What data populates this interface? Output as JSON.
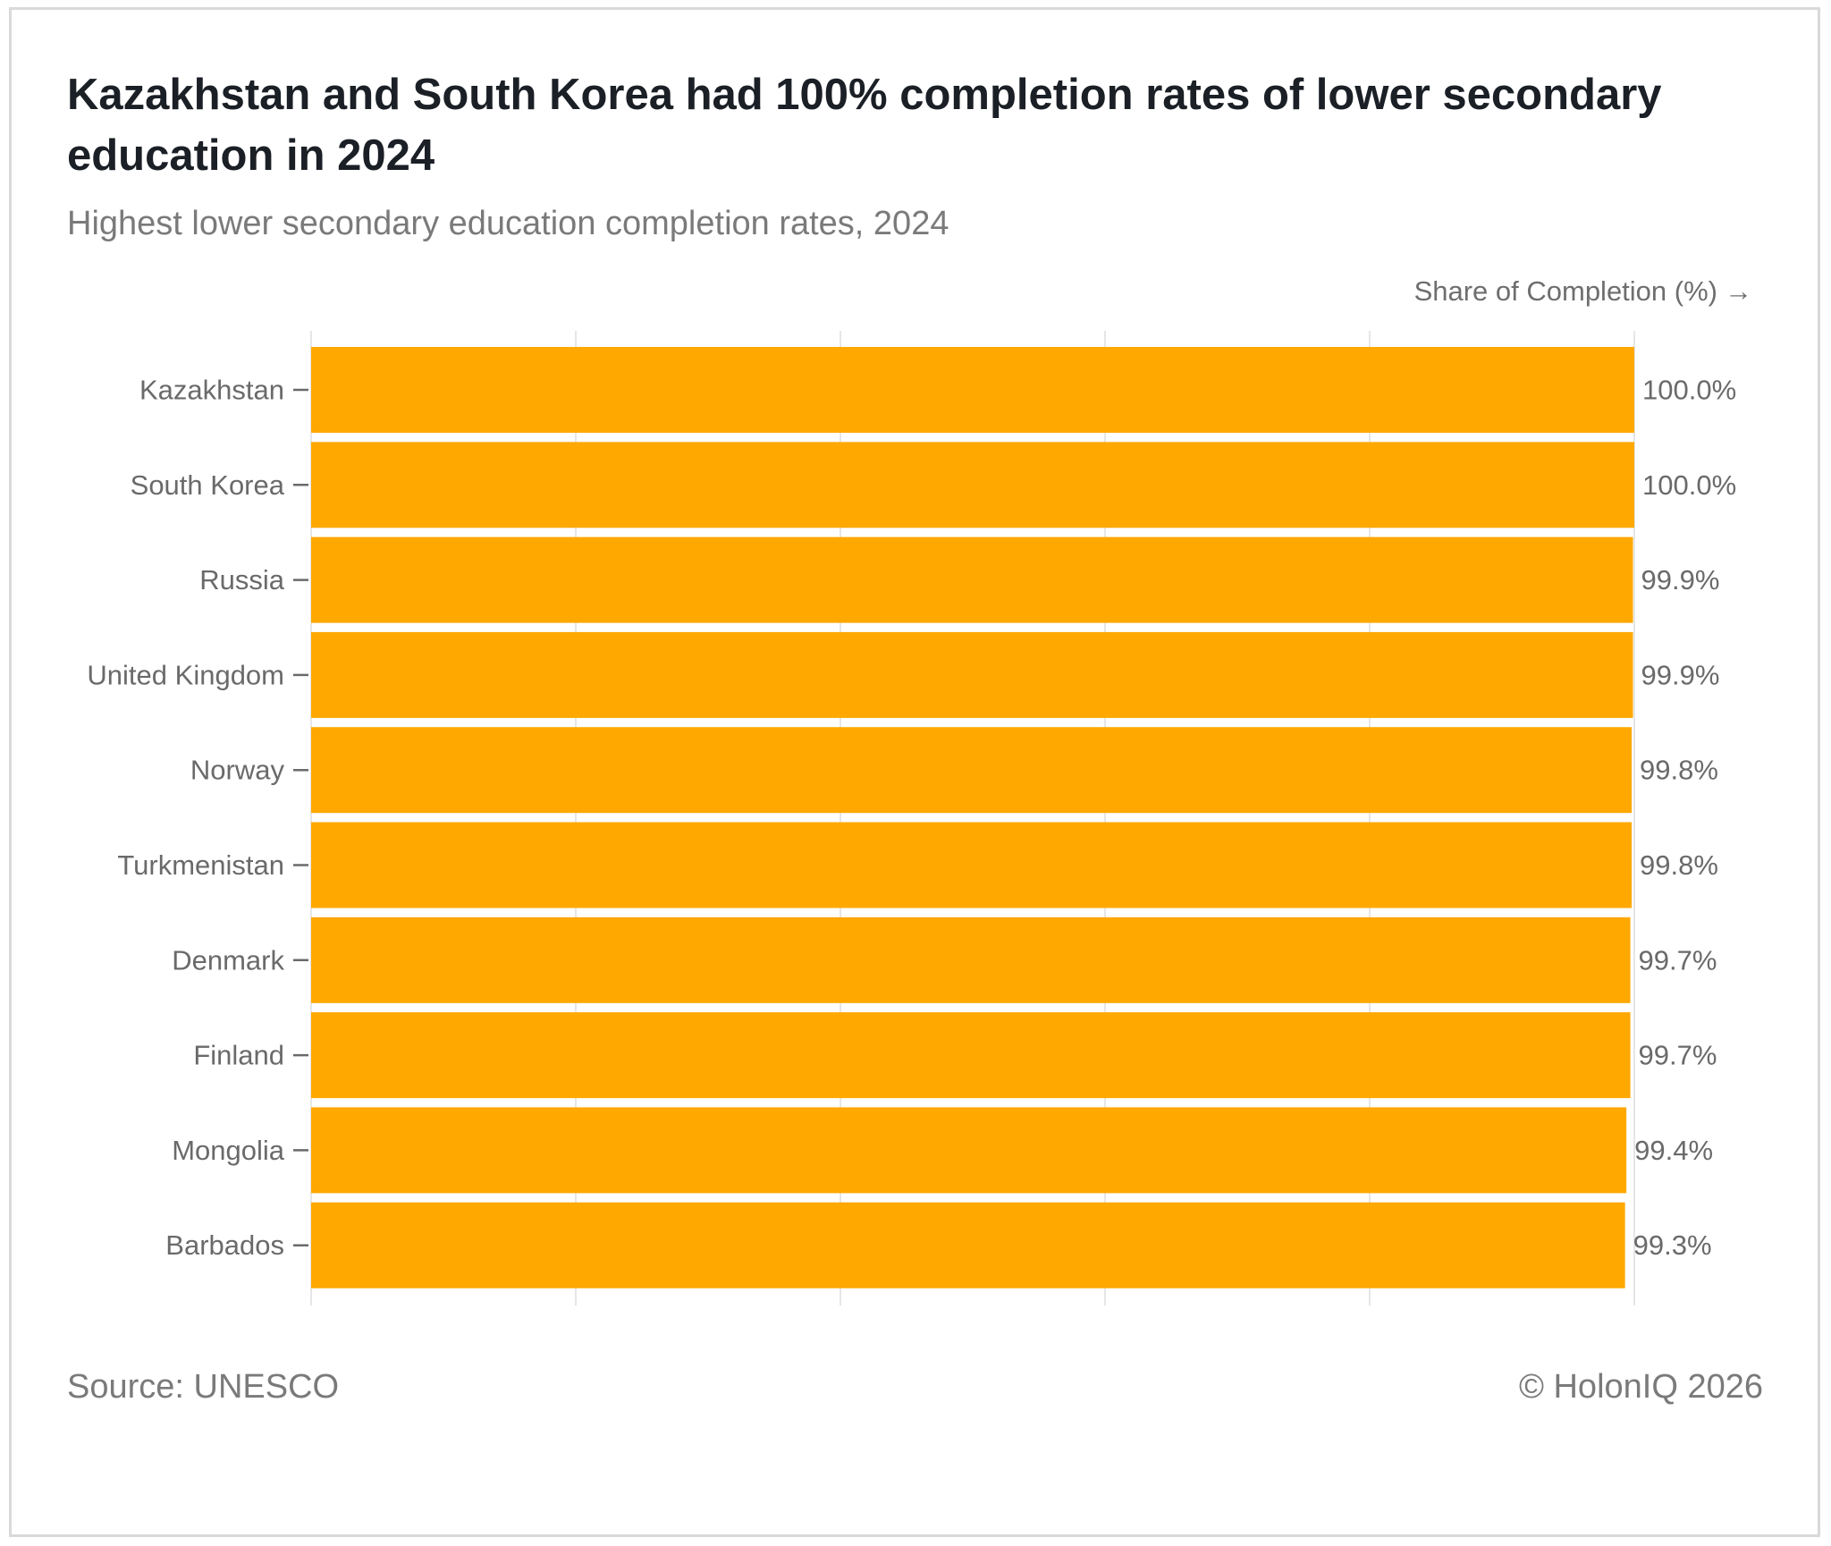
{
  "header": {
    "title": "Kazakhstan and South Korea had 100% completion rates of lower secondary education in 2024",
    "subtitle": "Highest lower secondary education completion rates, 2024"
  },
  "footer": {
    "source": "Source: UNESCO",
    "credit": "© HolonIQ 2026"
  },
  "colors": {
    "bar": "#FFA800",
    "grid": "#e6e6e6",
    "tick": "#6a6a6a"
  },
  "chart_data": {
    "type": "bar",
    "orientation": "horizontal",
    "title": "Kazakhstan and South Korea had 100% completion rates of lower secondary education in 2024",
    "subtitle": "Highest lower secondary education completion rates, 2024",
    "xlabel": "Share of Completion (%)",
    "xlabel_arrow": "→",
    "ylabel": "",
    "xlim": [
      0,
      100
    ],
    "grid": true,
    "categories": [
      "Kazakhstan",
      "South Korea",
      "Russia",
      "United Kingdom",
      "Norway",
      "Turkmenistan",
      "Denmark",
      "Finland",
      "Mongolia",
      "Barbados"
    ],
    "values": [
      100.0,
      100.0,
      99.9,
      99.9,
      99.8,
      99.8,
      99.7,
      99.7,
      99.4,
      99.3
    ],
    "value_labels": [
      "100.0%",
      "100.0%",
      "99.9%",
      "99.9%",
      "99.8%",
      "99.8%",
      "99.7%",
      "99.7%",
      "99.4%",
      "99.3%"
    ]
  }
}
